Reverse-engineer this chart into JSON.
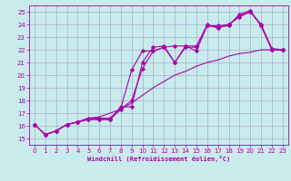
{
  "xlabel": "Windchill (Refroidissement éolien,°C)",
  "bg_color": "#c8ecec",
  "grid_color": "#aaaacc",
  "line_color": "#aa00aa",
  "x_ticks": [
    0,
    1,
    2,
    3,
    4,
    5,
    6,
    7,
    8,
    9,
    10,
    11,
    12,
    13,
    14,
    15,
    16,
    17,
    18,
    19,
    20,
    21,
    22,
    23
  ],
  "xlim": [
    -0.5,
    23.5
  ],
  "ylim": [
    14.5,
    25.5
  ],
  "y_ticks": [
    15,
    16,
    17,
    18,
    19,
    20,
    21,
    22,
    23,
    24,
    25
  ],
  "series_with_markers": [
    [
      16.1,
      15.3,
      15.6,
      16.1,
      16.3,
      16.5,
      16.5,
      16.5,
      17.5,
      17.5,
      21.0,
      22.2,
      22.3,
      21.0,
      22.3,
      21.9,
      23.9,
      23.8,
      23.9,
      24.8,
      25.1,
      23.9,
      22.0,
      22.0
    ],
    [
      16.1,
      15.3,
      15.6,
      16.1,
      16.3,
      16.5,
      16.5,
      16.5,
      17.3,
      18.0,
      20.5,
      21.9,
      22.2,
      21.0,
      22.2,
      22.2,
      24.0,
      23.7,
      24.0,
      24.6,
      25.0,
      24.0,
      22.1,
      22.0
    ],
    [
      16.1,
      15.3,
      15.6,
      16.1,
      16.3,
      16.6,
      16.6,
      16.6,
      17.4,
      20.4,
      21.9,
      21.9,
      22.2,
      22.3,
      22.3,
      22.3,
      23.9,
      23.9,
      24.0,
      24.7,
      25.0,
      23.9,
      22.0,
      22.0
    ]
  ],
  "series_line": [
    16.1,
    15.3,
    15.6,
    16.1,
    16.3,
    16.6,
    16.7,
    17.0,
    17.3,
    17.8,
    18.4,
    19.0,
    19.5,
    20.0,
    20.3,
    20.7,
    21.0,
    21.2,
    21.5,
    21.7,
    21.8,
    22.0,
    22.0,
    22.0
  ]
}
